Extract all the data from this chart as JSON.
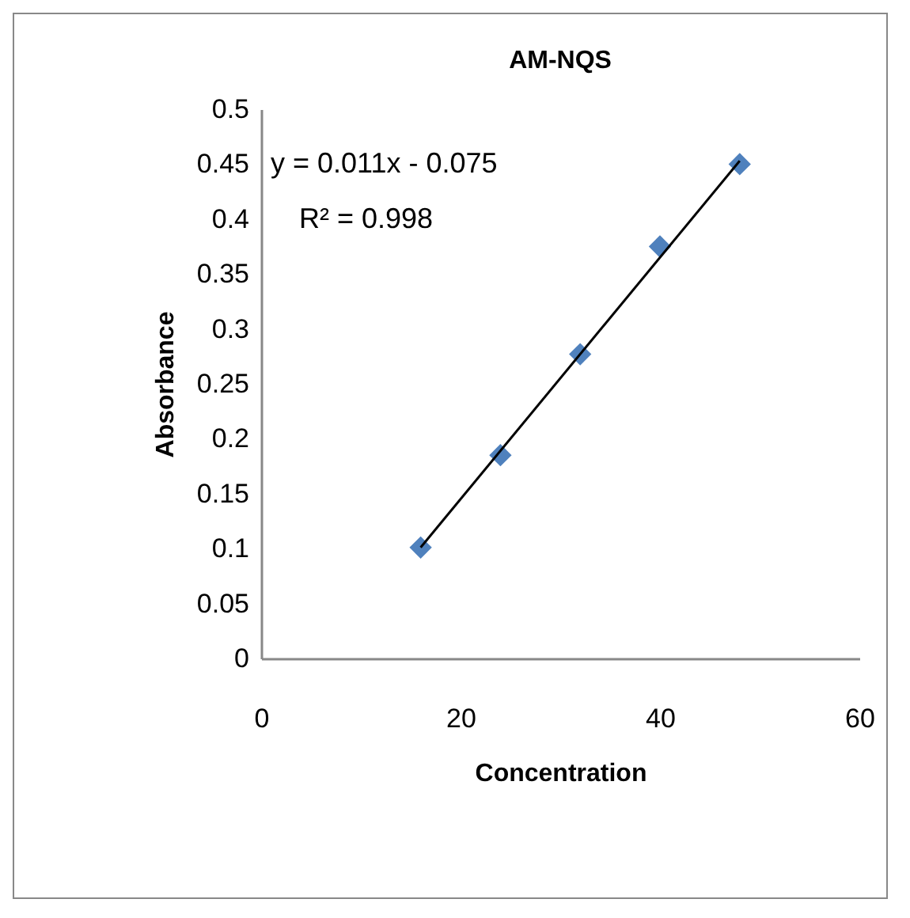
{
  "chart_data": {
    "type": "scatter",
    "title": "AM-NQS",
    "xlabel": "Concentration",
    "ylabel": "Absorbance",
    "x": [
      16,
      24,
      32,
      40,
      48
    ],
    "series": [
      {
        "color": "#4f81bd",
        "marker": "diamond",
        "values": [
          0.101,
          0.185,
          0.277,
          0.375,
          0.45
        ]
      },
      {
        "type": "line",
        "color": "#000000",
        "marker": "none",
        "x": [
          16,
          48
        ],
        "values": [
          0.101,
          0.453
        ]
      }
    ],
    "grid": false,
    "xlim": [
      0,
      60
    ],
    "xticks": [
      0,
      20,
      40,
      60
    ],
    "ylim": [
      0,
      0.5
    ],
    "yticks": [
      0,
      0.05,
      0.1,
      0.15,
      0.2,
      0.25,
      0.3,
      0.35,
      0.4,
      0.45,
      0.5
    ],
    "annotations": [
      "y = 0.011x - 0.075",
      "R² = 0.998"
    ]
  }
}
